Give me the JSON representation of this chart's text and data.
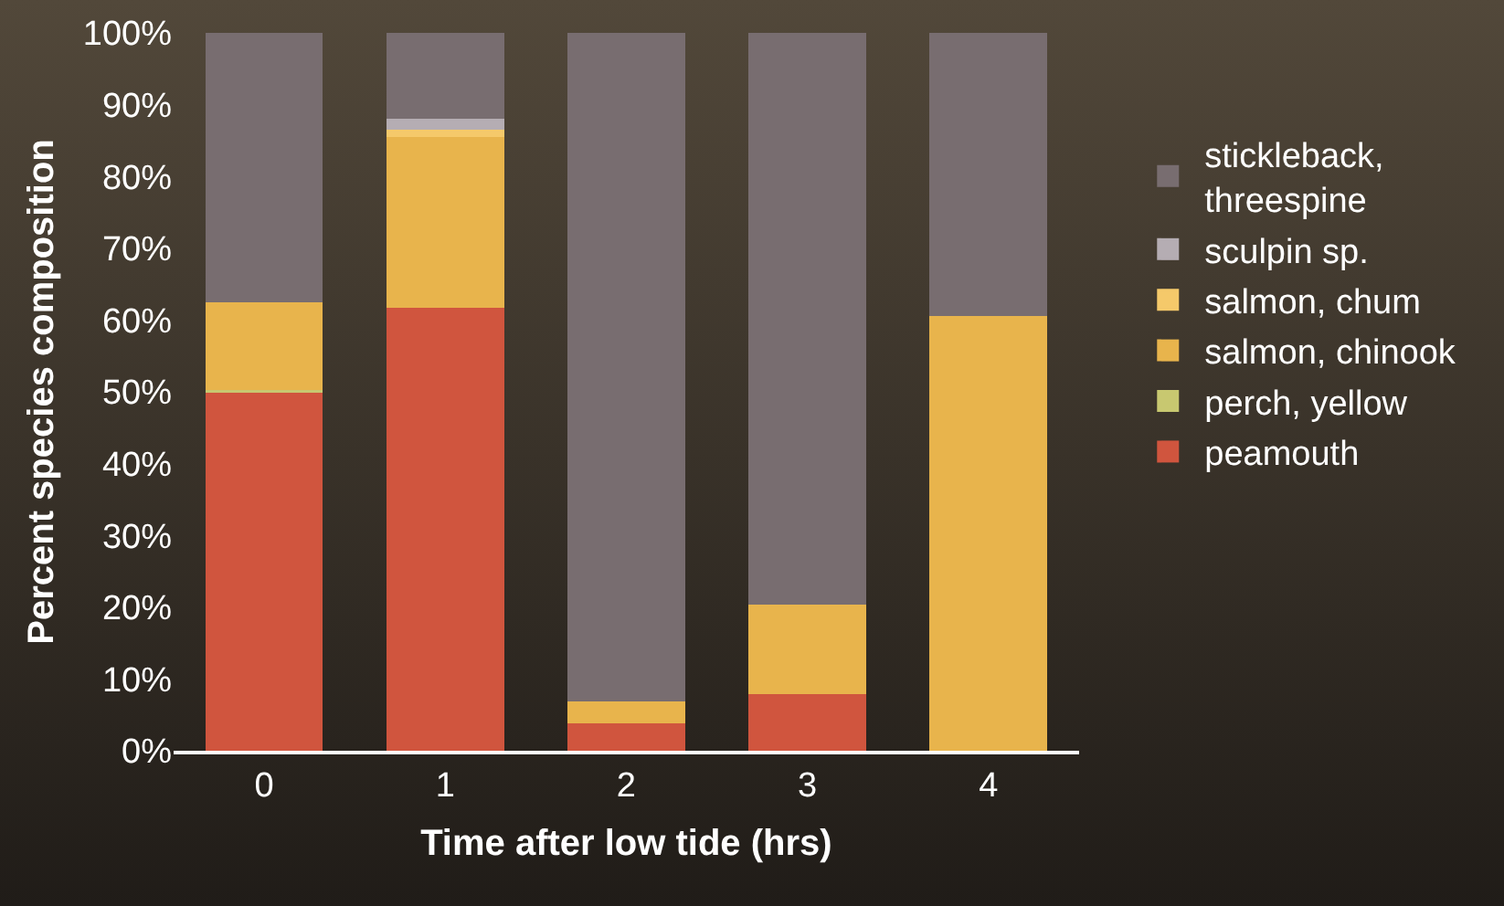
{
  "chart_data": {
    "type": "bar",
    "stacked": true,
    "xlabel": "Time after low tide (hrs)",
    "ylabel": "Percent species composition",
    "categories": [
      "0",
      "1",
      "2",
      "3",
      "4"
    ],
    "series": [
      {
        "name": "peamouth",
        "color": "#d0553e",
        "values": [
          50.0,
          61.7,
          3.8,
          7.9,
          0
        ]
      },
      {
        "name": "perch, yellow",
        "color": "#c8c870",
        "values": [
          0.3,
          0,
          0,
          0,
          0
        ]
      },
      {
        "name": "salmon, chinook",
        "color": "#e8b44c",
        "values": [
          12.2,
          23.8,
          3.1,
          12.5,
          60.5
        ]
      },
      {
        "name": "salmon, chum",
        "color": "#f5c96a",
        "values": [
          0,
          1.0,
          0,
          0,
          0
        ]
      },
      {
        "name": "sculpin sp.",
        "color": "#b5adb3",
        "values": [
          0,
          1.5,
          0,
          0,
          0
        ]
      },
      {
        "name": "stickleback, threespine",
        "color": "#786d70",
        "values": [
          37.5,
          12.0,
          93.1,
          79.6,
          39.5
        ]
      }
    ],
    "ylim": [
      0,
      100
    ],
    "yticks": [
      {
        "value": 0,
        "label": "0%"
      },
      {
        "value": 10,
        "label": "10%"
      },
      {
        "value": 20,
        "label": "20%"
      },
      {
        "value": 30,
        "label": "30%"
      },
      {
        "value": 40,
        "label": "40%"
      },
      {
        "value": 50,
        "label": "50%"
      },
      {
        "value": 60,
        "label": "60%"
      },
      {
        "value": 70,
        "label": "70%"
      },
      {
        "value": 80,
        "label": "80%"
      },
      {
        "value": 90,
        "label": "90%"
      },
      {
        "value": 100,
        "label": "100%"
      }
    ],
    "grid": false,
    "legend": "right"
  }
}
